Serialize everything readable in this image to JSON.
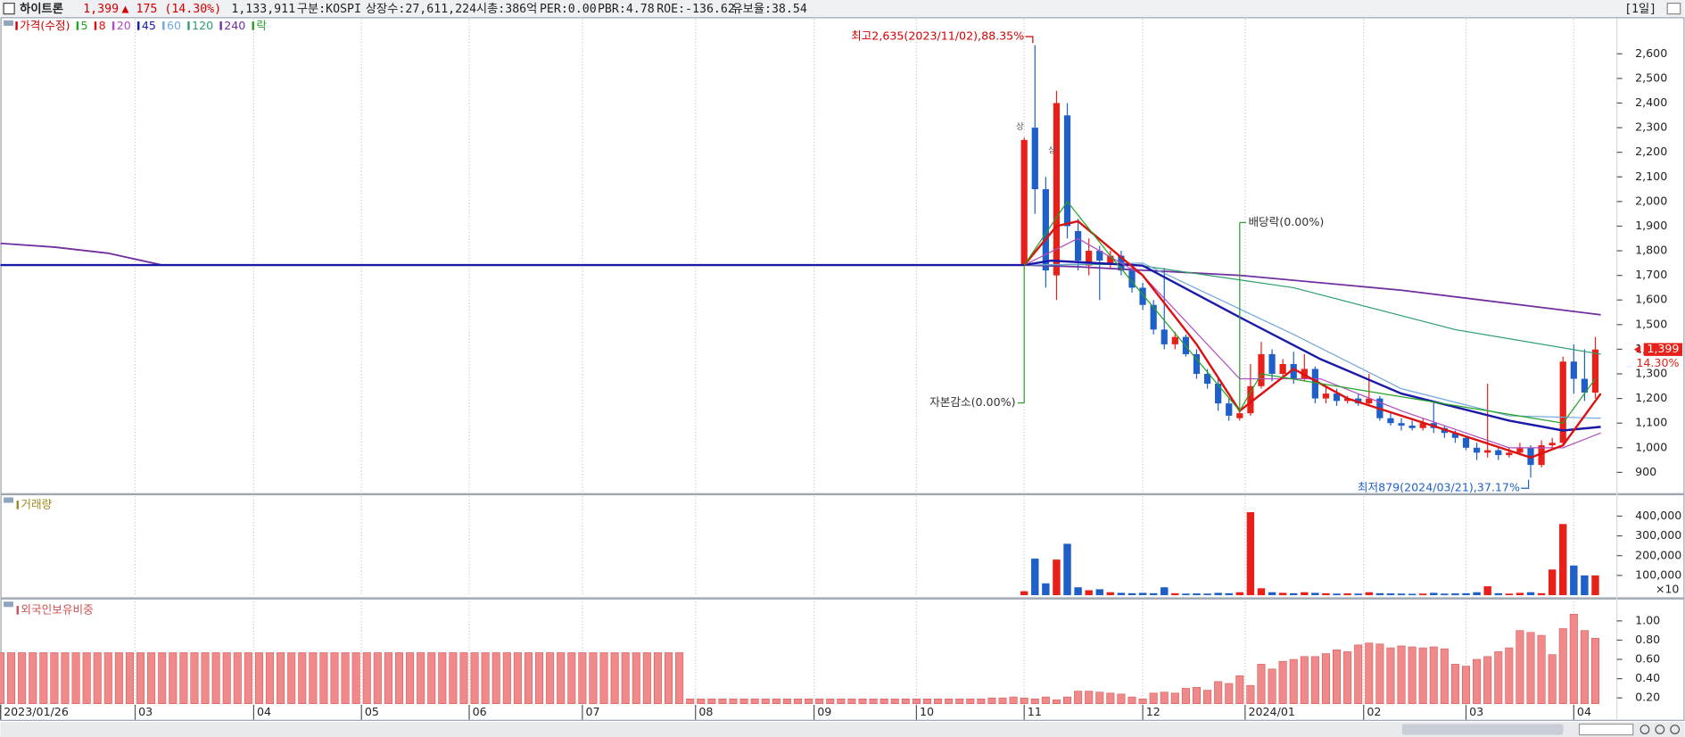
{
  "header": {
    "name": "하이트론",
    "price": "1,399",
    "change": "▲ 175 (14.30%)",
    "volume": "1,133,911",
    "market": "구분:KOSPI",
    "shares": "상장수:27,611,224",
    "cap": "시총:386억",
    "per": "PER:0.00",
    "pbr": "PBR:4.78",
    "roe": "ROE:-136.62",
    "reserve": "유보율:38.54",
    "period": "[1일]"
  },
  "chart_data": [
    {
      "type": "candlestick",
      "legend_title": "가격(수정)",
      "legend_color": "#d40000",
      "up_color": "#e8201a",
      "down_color": "#1f5fc8",
      "xlim": [
        0,
        300
      ],
      "ylim": [
        820,
        2740
      ],
      "yticks": [
        900,
        {
          "value": 1000,
          "label": "1,000"
        },
        {
          "value": 1100,
          "label": "1,100"
        },
        {
          "value": 1200,
          "label": "1,200"
        },
        {
          "value": 1300,
          "label": "1,300"
        },
        {
          "value": 1400,
          "label": "1,400"
        },
        {
          "value": 1500,
          "label": "1,500"
        },
        {
          "value": 1600,
          "label": "1,600"
        },
        {
          "value": 1700,
          "label": "1,700"
        },
        {
          "value": 1800,
          "label": "1,800"
        },
        {
          "value": 1900,
          "label": "1,900"
        },
        {
          "value": 2000,
          "label": "2,000"
        },
        {
          "value": 2100,
          "label": "2,100"
        },
        {
          "value": 2200,
          "label": "2,200"
        },
        {
          "value": 2300,
          "label": "2,300"
        },
        {
          "value": 2400,
          "label": "2,400"
        },
        {
          "value": 2500,
          "label": "2,500"
        },
        {
          "value": 2600,
          "label": "2,600"
        }
      ],
      "grid": true,
      "candles": {
        "x": [
          190,
          192,
          194,
          196,
          198,
          200,
          202,
          204,
          206,
          208,
          210,
          212,
          214,
          216,
          218,
          220,
          222,
          224,
          226,
          228,
          230,
          232,
          234,
          236,
          238,
          240,
          242,
          244,
          246,
          248,
          250,
          252,
          254,
          256,
          258,
          260,
          262,
          264,
          266,
          268,
          270,
          272,
          274,
          276,
          278,
          280,
          282,
          284,
          286,
          288,
          290,
          292,
          294,
          296
        ],
        "open": [
          1740,
          2300,
          2050,
          1700,
          2350,
          1880,
          1740,
          1800,
          1750,
          1780,
          1720,
          1650,
          1580,
          1480,
          1420,
          1450,
          1380,
          1300,
          1260,
          1180,
          1120,
          1140,
          1250,
          1380,
          1300,
          1340,
          1280,
          1320,
          1200,
          1220,
          1190,
          1200,
          1180,
          1200,
          1120,
          1100,
          1090,
          1080,
          1100,
          1080,
          1060,
          1040,
          1000,
          980,
          990,
          970,
          980,
          1000,
          930,
          1010,
          1020,
          1350,
          1280,
          1224
        ],
        "high": [
          2260,
          2635,
          2100,
          2450,
          2400,
          1930,
          1850,
          1820,
          1800,
          1800,
          1740,
          1670,
          1600,
          1730,
          1470,
          1460,
          1400,
          1320,
          1280,
          1200,
          1160,
          1340,
          1430,
          1400,
          1360,
          1390,
          1380,
          1330,
          1250,
          1240,
          1210,
          1220,
          1300,
          1210,
          1140,
          1120,
          1110,
          1120,
          1190,
          1090,
          1070,
          1050,
          1020,
          1260,
          1000,
          1000,
          1020,
          1010,
          1030,
          1040,
          1370,
          1420,
          1400,
          1450
        ],
        "low": [
          1740,
          1950,
          1650,
          1600,
          1850,
          1720,
          1700,
          1600,
          1730,
          1700,
          1630,
          1560,
          1460,
          1400,
          1400,
          1370,
          1280,
          1240,
          1150,
          1110,
          1110,
          1130,
          1240,
          1270,
          1290,
          1260,
          1270,
          1180,
          1180,
          1170,
          1180,
          1170,
          1170,
          1110,
          1090,
          1070,
          1070,
          1070,
          1060,
          1040,
          1020,
          990,
          950,
          960,
          950,
          960,
          970,
          879,
          920,
          1000,
          1010,
          1220,
          1190,
          1200
        ],
        "close": [
          2250,
          2050,
          1720,
          2400,
          1900,
          1760,
          1800,
          1760,
          1780,
          1720,
          1650,
          1580,
          1480,
          1420,
          1450,
          1380,
          1300,
          1260,
          1180,
          1130,
          1140,
          1250,
          1380,
          1300,
          1340,
          1280,
          1320,
          1200,
          1220,
          1190,
          1200,
          1180,
          1200,
          1120,
          1100,
          1090,
          1080,
          1100,
          1080,
          1060,
          1040,
          1000,
          980,
          990,
          970,
          980,
          1000,
          930,
          1010,
          1020,
          1350,
          1280,
          1224,
          1399
        ]
      },
      "series": [
        {
          "name": "5",
          "color": "#22a322",
          "width": 1,
          "x": [
            190,
            198,
            206,
            230,
            234,
            290,
            296
          ],
          "values": [
            1742,
            2000,
            1780,
            1150,
            1300,
            1100,
            1280
          ]
        },
        {
          "name": "8",
          "color": "#dd1111",
          "width": 2,
          "x": [
            190,
            196,
            200,
            212,
            222,
            230,
            240,
            250,
            270,
            284,
            290,
            297
          ],
          "values": [
            1742,
            1900,
            1920,
            1700,
            1420,
            1150,
            1320,
            1200,
            1060,
            960,
            1010,
            1220
          ]
        },
        {
          "name": "20",
          "color": "#b04cc0",
          "width": 1,
          "x": [
            190,
            200,
            212,
            230,
            245,
            260,
            280,
            290,
            297
          ],
          "values": [
            1742,
            1850,
            1700,
            1280,
            1280,
            1150,
            1000,
            1000,
            1060
          ]
        },
        {
          "name": "45",
          "color": "#1a1aa8",
          "width": 2,
          "x": [
            0,
            190,
            195,
            212,
            230,
            245,
            260,
            280,
            290,
            297
          ],
          "values": [
            1742,
            1742,
            1760,
            1740,
            1530,
            1360,
            1220,
            1110,
            1070,
            1085
          ]
        },
        {
          "name": "60",
          "color": "#6fa8dc",
          "width": 1,
          "x": [
            0,
            190,
            212,
            240,
            260,
            280,
            297
          ],
          "values": [
            1742,
            1742,
            1750,
            1460,
            1240,
            1130,
            1120
          ]
        },
        {
          "name": "120",
          "color": "#2e9e6e",
          "width": 1,
          "x": [
            0,
            190,
            210,
            240,
            270,
            297
          ],
          "values": [
            1742,
            1742,
            1745,
            1650,
            1480,
            1380
          ]
        },
        {
          "name": "240",
          "color": "#7030a0",
          "width": 1.5,
          "x": [
            0,
            10,
            20,
            30,
            190,
            200,
            230,
            260,
            297
          ],
          "values": [
            1830,
            1815,
            1790,
            1742,
            1742,
            1735,
            1700,
            1640,
            1540
          ]
        }
      ],
      "event_legend": {
        "name": "락",
        "color": "#2a9d2a"
      },
      "annotations": [
        {
          "text": "최고2,635(2023/11/02),88.35%",
          "x": 192,
          "y": 2635,
          "color": "#d40000",
          "side": "above"
        },
        {
          "text": "최저879(2024/03/21),37.17%",
          "x": 284,
          "y": 879,
          "color": "#1f5fc8",
          "side": "below"
        }
      ],
      "events": [
        {
          "text": "자본감소(0.00%)",
          "x": 190,
          "y": 1182,
          "color": "#2a9d2a"
        },
        {
          "text": "배당락(0.00%)",
          "x": 230,
          "y": 1915,
          "color": "#2a9d2a"
        }
      ],
      "limit_up": [
        {
          "text": "상",
          "x": 190,
          "y": 2304
        },
        {
          "text": "상",
          "x": 196,
          "y": 2208
        }
      ],
      "last_label": "1,399",
      "last_change": "14.30%",
      "tag_color": "#e8201a"
    },
    {
      "type": "bar",
      "title": "거래량",
      "title_color": "#a08a20",
      "unit_label": "×10",
      "up_color": "#e8201a",
      "down_color": "#1f5fc8",
      "xlim": [
        0,
        300
      ],
      "ylim": [
        0,
        500000
      ],
      "yticks": [
        {
          "value": 100000,
          "label": "100,000"
        },
        {
          "value": 200000,
          "label": "200,000"
        },
        {
          "value": 300000,
          "label": "300,000"
        },
        {
          "value": 400000,
          "label": "400,000"
        }
      ],
      "grid": true,
      "x": [
        190,
        192,
        194,
        196,
        198,
        200,
        202,
        204,
        206,
        208,
        210,
        212,
        214,
        216,
        218,
        220,
        222,
        224,
        226,
        228,
        230,
        232,
        234,
        236,
        238,
        240,
        242,
        244,
        246,
        248,
        250,
        252,
        254,
        256,
        258,
        260,
        262,
        264,
        266,
        268,
        270,
        272,
        274,
        276,
        278,
        280,
        282,
        284,
        286,
        288,
        290,
        292,
        294,
        296
      ],
      "values": [
        20000,
        185000,
        60000,
        180000,
        260000,
        40000,
        25000,
        30000,
        15000,
        12000,
        10000,
        12000,
        10000,
        40000,
        10000,
        8000,
        9000,
        8000,
        12000,
        10000,
        15000,
        420000,
        35000,
        15000,
        12000,
        10000,
        15000,
        12000,
        10000,
        8000,
        9000,
        8000,
        15000,
        10000,
        9000,
        8000,
        7000,
        8000,
        12000,
        8000,
        9000,
        10000,
        15000,
        45000,
        10000,
        8000,
        12000,
        15000,
        10000,
        130000,
        360000,
        150000,
        100000,
        100000
      ]
    },
    {
      "type": "bar",
      "title": "외국인보유비중",
      "title_color": "#d05050",
      "color": "#f08a8a",
      "edge_color": "#d45a5a",
      "xlim": [
        0,
        300
      ],
      "ylim": [
        0.14,
        1.2
      ],
      "yticks": [
        {
          "value": 0.2,
          "label": "0.20"
        },
        {
          "value": 0.4,
          "label": "0.40"
        },
        {
          "value": 0.6,
          "label": "0.60"
        },
        {
          "value": 0.8,
          "label": "0.80"
        },
        {
          "value": 1,
          "label": "1.00"
        }
      ],
      "grid": true,
      "xticks": [
        {
          "value": 0,
          "label": "2023/01/26"
        },
        {
          "value": 25,
          "label": "03"
        },
        {
          "value": 47,
          "label": "04"
        },
        {
          "value": 67,
          "label": "05"
        },
        {
          "value": 87,
          "label": "06"
        },
        {
          "value": 108,
          "label": "07"
        },
        {
          "value": 129,
          "label": "08"
        },
        {
          "value": 151,
          "label": "09"
        },
        {
          "value": 170,
          "label": "10"
        },
        {
          "value": 190,
          "label": "11"
        },
        {
          "value": 212,
          "label": "12"
        },
        {
          "value": 231,
          "label": "2024/01"
        },
        {
          "value": 253,
          "label": "02"
        },
        {
          "value": 272,
          "label": "03"
        },
        {
          "value": 292,
          "label": "04"
        }
      ],
      "x": [
        0,
        2,
        4,
        6,
        8,
        10,
        12,
        14,
        16,
        18,
        20,
        22,
        24,
        26,
        28,
        30,
        32,
        34,
        36,
        38,
        40,
        42,
        44,
        46,
        48,
        50,
        52,
        54,
        56,
        58,
        60,
        62,
        64,
        66,
        68,
        70,
        72,
        74,
        76,
        78,
        80,
        82,
        84,
        86,
        88,
        90,
        92,
        94,
        96,
        98,
        100,
        102,
        104,
        106,
        108,
        110,
        112,
        114,
        116,
        118,
        120,
        122,
        124,
        126,
        128,
        130,
        132,
        134,
        136,
        138,
        140,
        142,
        144,
        146,
        148,
        150,
        152,
        154,
        156,
        158,
        160,
        162,
        164,
        166,
        168,
        170,
        172,
        174,
        176,
        178,
        180,
        182,
        184,
        186,
        188,
        190,
        192,
        194,
        196,
        198,
        200,
        202,
        204,
        206,
        208,
        210,
        212,
        214,
        216,
        218,
        220,
        222,
        224,
        226,
        228,
        230,
        232,
        234,
        236,
        238,
        240,
        242,
        244,
        246,
        248,
        250,
        252,
        254,
        256,
        258,
        260,
        262,
        264,
        266,
        268,
        270,
        272,
        274,
        276,
        278,
        280,
        282,
        284,
        286,
        288,
        290,
        292,
        294,
        296
      ],
      "values": [
        0.67,
        0.67,
        0.67,
        0.67,
        0.67,
        0.67,
        0.67,
        0.67,
        0.67,
        0.67,
        0.67,
        0.67,
        0.67,
        0.67,
        0.67,
        0.67,
        0.67,
        0.67,
        0.67,
        0.67,
        0.67,
        0.67,
        0.67,
        0.67,
        0.67,
        0.67,
        0.67,
        0.67,
        0.67,
        0.67,
        0.67,
        0.67,
        0.67,
        0.67,
        0.67,
        0.67,
        0.67,
        0.67,
        0.67,
        0.67,
        0.67,
        0.67,
        0.67,
        0.67,
        0.67,
        0.67,
        0.67,
        0.67,
        0.67,
        0.67,
        0.67,
        0.67,
        0.67,
        0.67,
        0.67,
        0.67,
        0.67,
        0.67,
        0.67,
        0.67,
        0.67,
        0.67,
        0.67,
        0.67,
        0.19,
        0.19,
        0.19,
        0.19,
        0.19,
        0.19,
        0.19,
        0.19,
        0.19,
        0.19,
        0.19,
        0.19,
        0.19,
        0.19,
        0.19,
        0.19,
        0.19,
        0.19,
        0.19,
        0.19,
        0.19,
        0.19,
        0.19,
        0.19,
        0.19,
        0.19,
        0.19,
        0.19,
        0.2,
        0.2,
        0.21,
        0.2,
        0.19,
        0.21,
        0.18,
        0.21,
        0.27,
        0.27,
        0.26,
        0.25,
        0.24,
        0.21,
        0.19,
        0.25,
        0.26,
        0.25,
        0.3,
        0.31,
        0.28,
        0.37,
        0.35,
        0.43,
        0.33,
        0.55,
        0.5,
        0.58,
        0.6,
        0.63,
        0.63,
        0.66,
        0.7,
        0.68,
        0.75,
        0.77,
        0.76,
        0.72,
        0.74,
        0.73,
        0.72,
        0.73,
        0.71,
        0.55,
        0.53,
        0.6,
        0.63,
        0.68,
        0.72,
        0.9,
        0.88,
        0.85,
        0.65,
        0.92,
        1.07,
        0.9,
        0.82
      ]
    }
  ]
}
